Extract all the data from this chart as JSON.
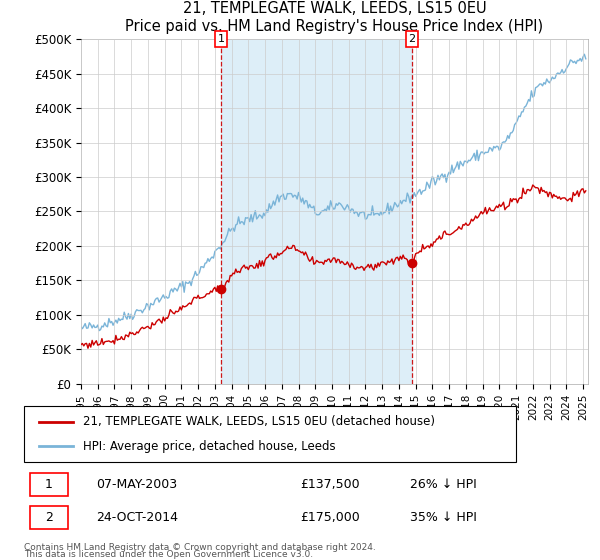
{
  "title": "21, TEMPLEGATE WALK, LEEDS, LS15 0EU",
  "subtitle": "Price paid vs. HM Land Registry's House Price Index (HPI)",
  "hpi_color": "#7ab4d8",
  "price_color": "#cc0000",
  "vline_color": "#cc0000",
  "shade_color": "#ddeef8",
  "ylim": [
    0,
    500000
  ],
  "yticks": [
    0,
    50000,
    100000,
    150000,
    200000,
    250000,
    300000,
    350000,
    400000,
    450000,
    500000
  ],
  "ytick_labels": [
    "£0",
    "£50K",
    "£100K",
    "£150K",
    "£200K",
    "£250K",
    "£300K",
    "£350K",
    "£400K",
    "£450K",
    "£500K"
  ],
  "t1_year": 2003.37,
  "t1_price": 137500,
  "t2_year": 2014.79,
  "t2_price": 175000,
  "transaction1": {
    "date": "07-MAY-2003",
    "price": 137500,
    "label": "1",
    "pct": "26% ↓ HPI"
  },
  "transaction2": {
    "date": "24-OCT-2014",
    "price": 175000,
    "label": "2",
    "pct": "35% ↓ HPI"
  },
  "legend_label1": "21, TEMPLEGATE WALK, LEEDS, LS15 0EU (detached house)",
  "legend_label2": "HPI: Average price, detached house, Leeds",
  "footnote1": "Contains HM Land Registry data © Crown copyright and database right 2024.",
  "footnote2": "This data is licensed under the Open Government Licence v3.0.",
  "background_color": "#ffffff",
  "grid_color": "#cccccc",
  "xlim_start": 1995.0,
  "xlim_end": 2025.3
}
